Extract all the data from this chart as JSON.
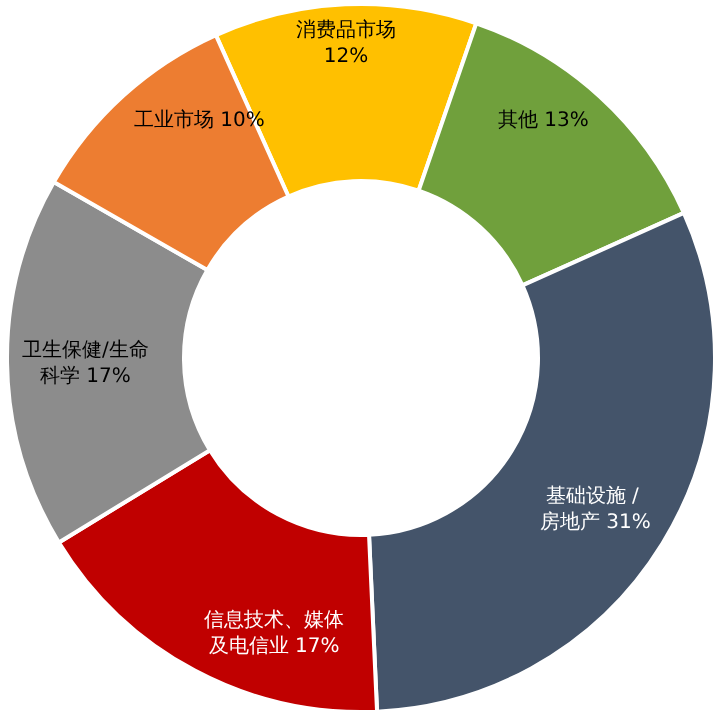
{
  "chart_data": {
    "type": "donut",
    "categories": [
      "消费品市场",
      "其他",
      "基础设施 / 房地产",
      "信息技术、媒体及电信业",
      "卫生保健/生命科学",
      "工业市场"
    ],
    "values": [
      12,
      13,
      31,
      17,
      17,
      10
    ],
    "colors": [
      "#ffc000",
      "#70a03c",
      "#44546a",
      "#c00000",
      "#8c8c8c",
      "#ed7d31"
    ],
    "value_labels": [
      "12%",
      "13%",
      "31%",
      "17%",
      "17%",
      "10%"
    ],
    "legend": false
  }
}
